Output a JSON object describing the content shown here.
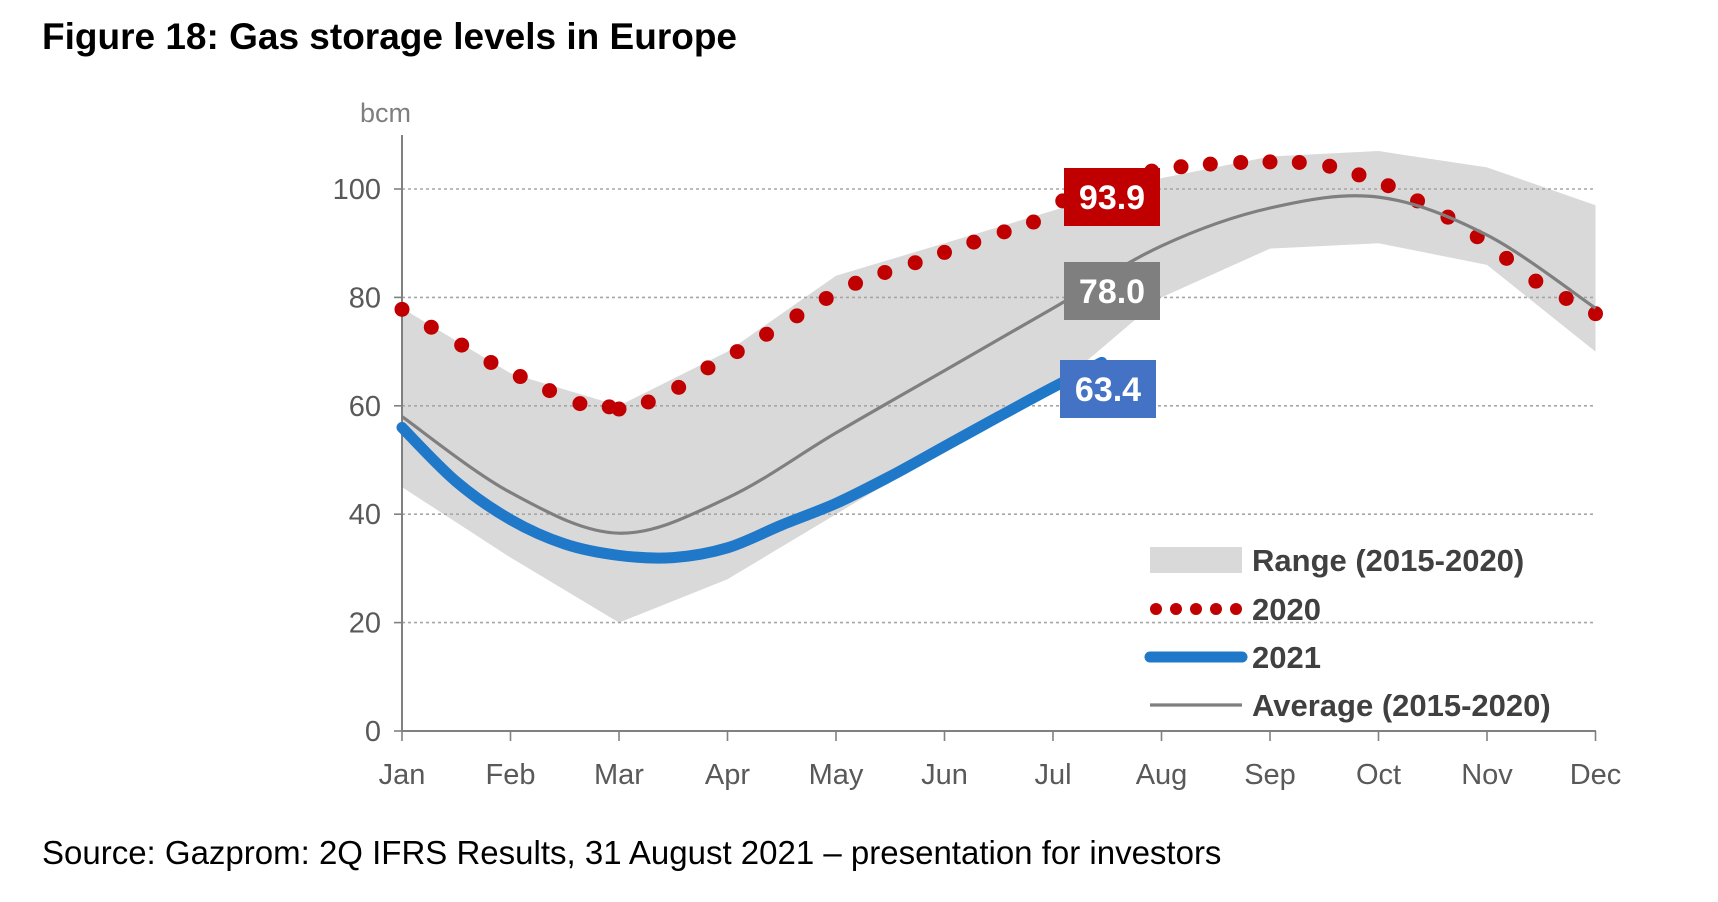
{
  "title": "Figure 18: Gas storage levels in Europe",
  "source": "Source: Gazprom: 2Q IFRS Results, 31 August 2021 – presentation for investors",
  "chart_data": {
    "type": "line",
    "ylabel": "bcm",
    "ylim": [
      0,
      110
    ],
    "yticks": [
      0,
      20,
      40,
      60,
      80,
      100
    ],
    "grid": true,
    "legend_position": "bottom-right",
    "categories": [
      "Jan",
      "Feb",
      "Mar",
      "Apr",
      "May",
      "Jun",
      "Jul",
      "Aug",
      "Sep",
      "Oct",
      "Nov",
      "Dec"
    ],
    "range": {
      "name": "Range (2015-2020)",
      "color": "#d9d9d9",
      "low": [
        45,
        32,
        20,
        28,
        40,
        52,
        63,
        80,
        89,
        90,
        86,
        70
      ],
      "high": [
        78,
        66,
        60,
        70,
        84,
        90,
        96,
        102,
        106,
        107,
        104,
        97
      ]
    },
    "series": [
      {
        "name": "2020",
        "style": "dotted",
        "color": "#c00000",
        "x": [
          0,
          0.27,
          0.55,
          0.82,
          1.09,
          1.36,
          1.64,
          1.91,
          2.0,
          2.27,
          2.55,
          2.82,
          3.09,
          3.36,
          3.64,
          3.91,
          4.18,
          4.45,
          4.73,
          5.0,
          5.27,
          5.55,
          5.82,
          6.09,
          6.36,
          6.64,
          6.91,
          7.18,
          7.45,
          7.73,
          8.0,
          8.27,
          8.55,
          8.82,
          9.09,
          9.36,
          9.64,
          9.91,
          10.18,
          10.45,
          10.73,
          11.0
        ],
        "values": [
          77.8,
          74.5,
          71.2,
          68.0,
          65.4,
          62.8,
          60.4,
          59.8,
          59.4,
          60.7,
          63.4,
          67.0,
          70.0,
          73.2,
          76.6,
          79.8,
          82.6,
          84.6,
          86.4,
          88.3,
          90.2,
          92.1,
          93.9,
          97.8,
          100.7,
          102.3,
          103.3,
          104.1,
          104.6,
          104.9,
          105.0,
          104.9,
          104.2,
          102.6,
          100.6,
          97.8,
          94.8,
          91.2,
          87.2,
          83.0,
          79.8,
          77.0
        ]
      },
      {
        "name": "2021",
        "style": "solid-thick",
        "color": "#1f78c8",
        "x": [
          0,
          0.5,
          1,
          1.5,
          2,
          2.5,
          3,
          3.5,
          4,
          4.5,
          5,
          5.5,
          6,
          6.45
        ],
        "values": [
          56,
          46,
          39,
          34.5,
          32.4,
          32,
          33.8,
          38,
          42,
          47,
          52.5,
          58,
          63.4,
          68
        ]
      },
      {
        "name": "Average (2015-2020)",
        "style": "solid-thin",
        "color": "#7f7f7f",
        "x": [
          0,
          1,
          2,
          3,
          4,
          5,
          6,
          7,
          8,
          9,
          10,
          11
        ],
        "values": [
          58,
          44,
          36.5,
          43,
          55,
          66.5,
          78,
          89.5,
          96.5,
          98.5,
          91.5,
          78
        ]
      }
    ],
    "callouts": [
      {
        "text": "93.9",
        "value": 93.9,
        "color": "#c00000"
      },
      {
        "text": "78.0",
        "value": 78.0,
        "color": "#7f7f7f"
      },
      {
        "text": "63.4",
        "value": 63.4,
        "color": "#4472c4"
      }
    ]
  }
}
